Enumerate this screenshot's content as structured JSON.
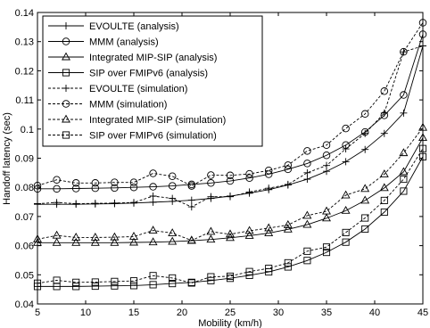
{
  "chart_data": {
    "type": "line",
    "title": "",
    "xlabel": "Mobility (km/h)",
    "ylabel": "Handoff latency (sec)",
    "xlim": [
      5,
      45
    ],
    "ylim": [
      0.04,
      0.14
    ],
    "xticks": [
      5,
      10,
      15,
      20,
      25,
      30,
      35,
      40,
      45
    ],
    "yticks": [
      0.04,
      0.05,
      0.06,
      0.07,
      0.08,
      0.09,
      0.1,
      0.11,
      0.12,
      0.13,
      0.14
    ],
    "ytick_labels": [
      "0.04",
      "0.05",
      "0.06",
      "0.07",
      "0.08",
      "0.09",
      "0.1",
      "0.11",
      "0.12",
      "0.13",
      "0.14"
    ],
    "grid": false,
    "legend_position": "top-left",
    "x": [
      5,
      7,
      9,
      11,
      13,
      15,
      17,
      19,
      21,
      23,
      25,
      27,
      29,
      31,
      33,
      35,
      37,
      39,
      41,
      43,
      45
    ],
    "series": [
      {
        "name": "EVOULTE (analysis)",
        "marker": "plus",
        "style": "solid",
        "values": [
          0.0742,
          0.0742,
          0.0742,
          0.0743,
          0.0744,
          0.0746,
          0.0749,
          0.0752,
          0.0756,
          0.0762,
          0.077,
          0.078,
          0.0792,
          0.0808,
          0.0828,
          0.0855,
          0.0888,
          0.093,
          0.0985,
          0.1055,
          0.1285
        ]
      },
      {
        "name": "MMM (analysis)",
        "marker": "circle",
        "style": "solid",
        "values": [
          0.0795,
          0.0795,
          0.0796,
          0.0797,
          0.0798,
          0.08,
          0.0802,
          0.0805,
          0.081,
          0.0815,
          0.0822,
          0.0832,
          0.0845,
          0.0862,
          0.0882,
          0.091,
          0.0945,
          0.099,
          0.1047,
          0.1117,
          0.1325
        ]
      },
      {
        "name": "Integrated MIP-SIP (analysis)",
        "marker": "triangle",
        "style": "solid",
        "values": [
          0.061,
          0.061,
          0.061,
          0.061,
          0.061,
          0.0611,
          0.0612,
          0.0614,
          0.0617,
          0.0621,
          0.0627,
          0.0634,
          0.0643,
          0.0656,
          0.0672,
          0.0694,
          0.072,
          0.0755,
          0.0798,
          0.0853,
          0.097
        ]
      },
      {
        "name": "SIP over FMIPv6 (analysis)",
        "marker": "square",
        "style": "solid",
        "values": [
          0.046,
          0.046,
          0.046,
          0.0461,
          0.0462,
          0.0463,
          0.0466,
          0.047,
          0.0474,
          0.048,
          0.0488,
          0.0498,
          0.051,
          0.0527,
          0.0549,
          0.0577,
          0.0612,
          0.0657,
          0.0715,
          0.0787,
          0.0905
        ]
      },
      {
        "name": "EVOULTE (simulation)",
        "marker": "plus",
        "style": "dashed",
        "values": [
          0.0744,
          0.0748,
          0.0744,
          0.0745,
          0.0746,
          0.0748,
          0.077,
          0.0762,
          0.0733,
          0.0768,
          0.0768,
          0.0784,
          0.0797,
          0.081,
          0.085,
          0.0875,
          0.0932,
          0.0985,
          0.1055,
          0.1265,
          0.1285
        ]
      },
      {
        "name": "MMM (simulation)",
        "marker": "circle",
        "style": "dashed",
        "values": [
          0.0806,
          0.0826,
          0.0815,
          0.0815,
          0.0817,
          0.0817,
          0.0848,
          0.0838,
          0.0805,
          0.0842,
          0.0841,
          0.0846,
          0.0858,
          0.0876,
          0.0925,
          0.0945,
          0.1002,
          0.1052,
          0.113,
          0.1265,
          0.1365
        ]
      },
      {
        "name": "Integrated MIP-SIP (simulation)",
        "marker": "triangle",
        "style": "dashed",
        "values": [
          0.0622,
          0.0635,
          0.0628,
          0.0628,
          0.0629,
          0.0631,
          0.0652,
          0.0643,
          0.0618,
          0.0648,
          0.0639,
          0.0651,
          0.066,
          0.0671,
          0.0703,
          0.0718,
          0.0773,
          0.0795,
          0.0845,
          0.0918,
          0.1005
        ]
      },
      {
        "name": "SIP over FMIPv6 (simulation)",
        "marker": "square",
        "style": "dashed",
        "values": [
          0.0471,
          0.0481,
          0.0474,
          0.0475,
          0.0477,
          0.0479,
          0.0497,
          0.0489,
          0.0472,
          0.0493,
          0.0495,
          0.0511,
          0.0522,
          0.0541,
          0.0581,
          0.0595,
          0.0645,
          0.0695,
          0.0755,
          0.0828,
          0.0933
        ]
      }
    ]
  }
}
